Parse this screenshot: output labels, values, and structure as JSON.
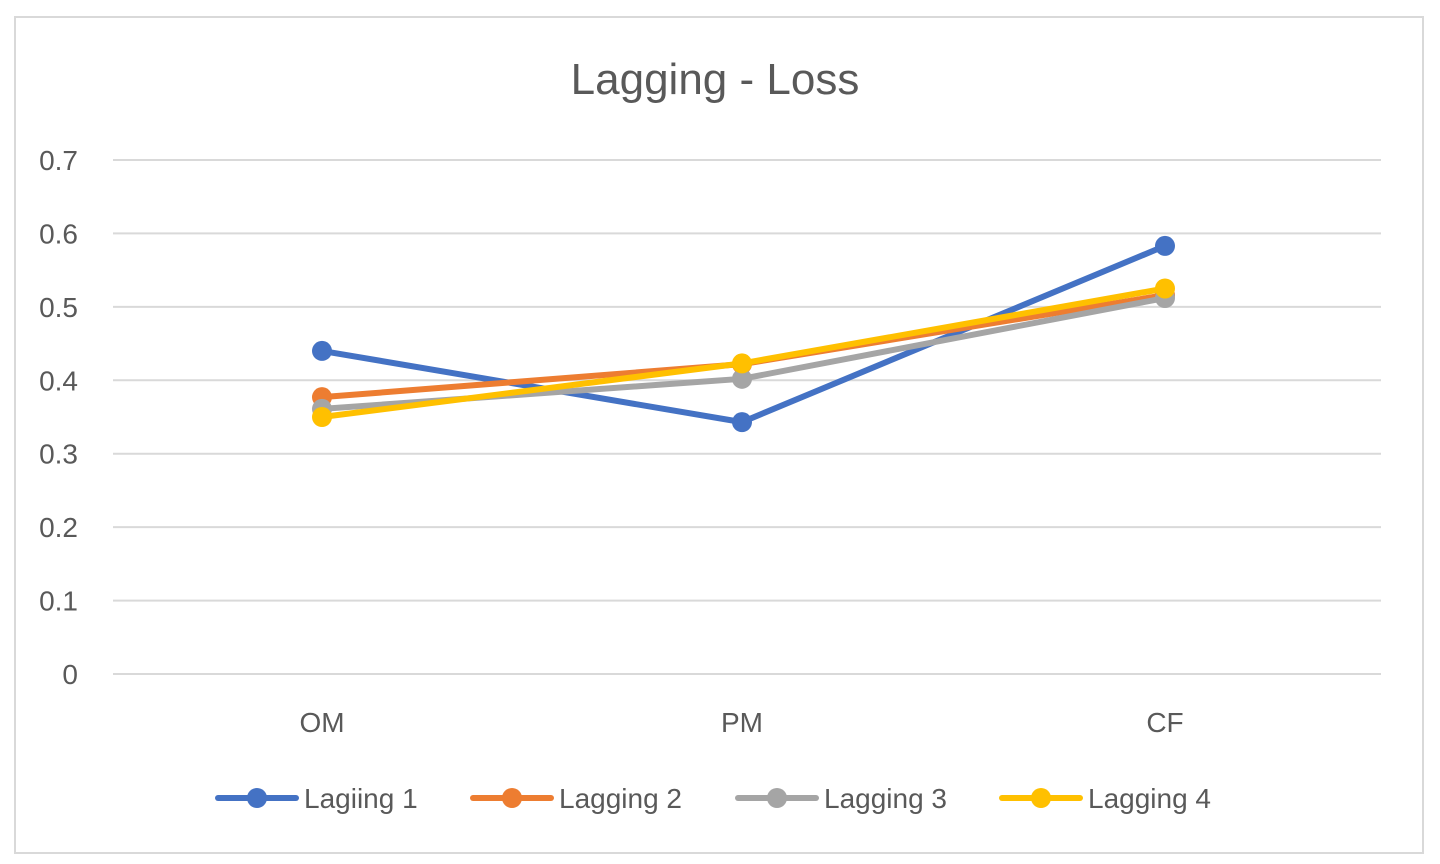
{
  "chart_data": {
    "type": "line",
    "title": "Lagging - Loss",
    "xlabel": "",
    "ylabel": "",
    "categories": [
      "OM",
      "PM",
      "CF"
    ],
    "ylim": [
      0,
      0.7
    ],
    "yticks": [
      0,
      0.1,
      0.2,
      0.3,
      0.4,
      0.5,
      0.6,
      0.7
    ],
    "ytick_labels": [
      "0",
      "0.1",
      "0.2",
      "0.3",
      "0.4",
      "0.5",
      "0.6",
      "0.7"
    ],
    "grid": true,
    "legend_position": "bottom",
    "series": [
      {
        "name": "Lagiing 1",
        "color": "#4472c4",
        "values": [
          0.44,
          0.343,
          0.583
        ]
      },
      {
        "name": "Lagging 2",
        "color": "#ed7d31",
        "values": [
          0.377,
          0.422,
          0.516
        ]
      },
      {
        "name": "Lagging 3",
        "color": "#a5a5a5",
        "values": [
          0.361,
          0.402,
          0.512
        ]
      },
      {
        "name": "Lagging 4",
        "color": "#ffc000",
        "values": [
          0.35,
          0.423,
          0.525
        ]
      }
    ]
  }
}
